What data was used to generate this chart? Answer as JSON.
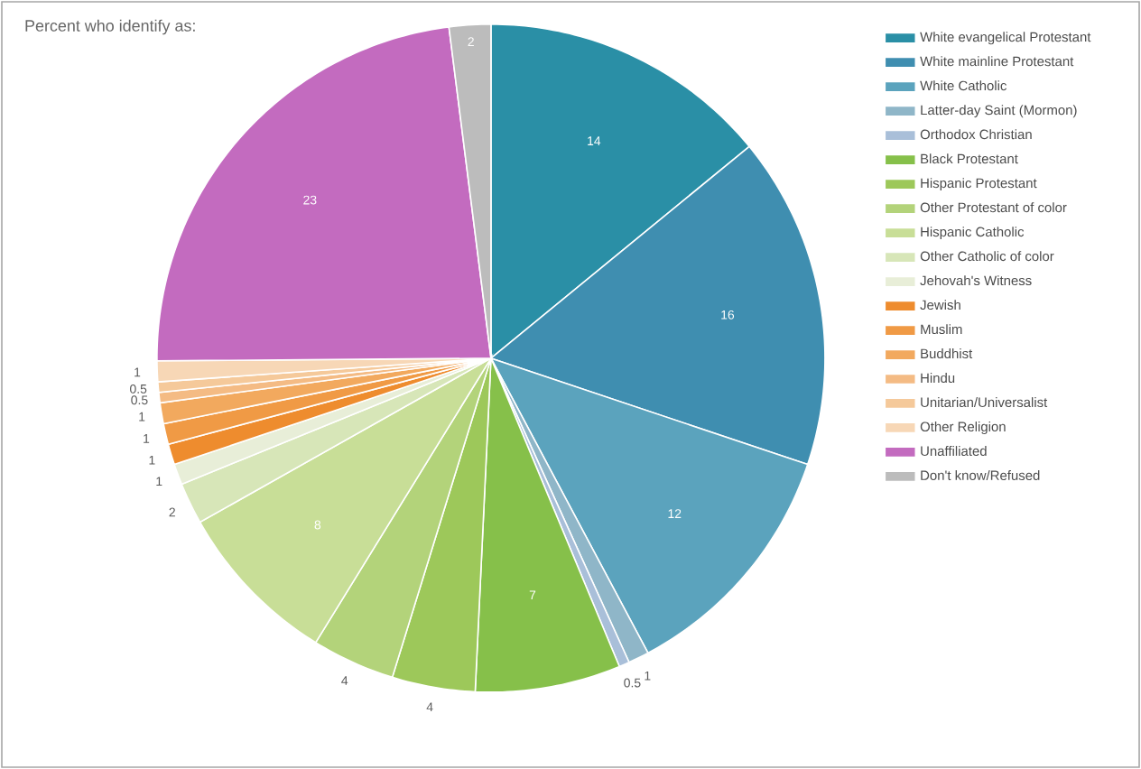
{
  "chart_data": {
    "type": "pie",
    "title": "Percent who identify as:",
    "categories": [
      "White evangelical Protestant",
      "White mainline Protestant",
      "White Catholic",
      "Latter-day Saint (Mormon)",
      "Orthodox Christian",
      "Black Protestant",
      "Hispanic Protestant",
      "Other Protestant of color",
      "Hispanic Catholic",
      "Other Catholic of color",
      "Jehovah's Witness",
      "Jewish",
      "Muslim",
      "Buddhist",
      "Hindu",
      "Unitarian/Universalist",
      "Other Religion",
      "Unaffiliated",
      "Don't know/Refused"
    ],
    "values": [
      14,
      16,
      12,
      1,
      0.5,
      7,
      4,
      4,
      8,
      2,
      1,
      1,
      1,
      1,
      0.5,
      0.5,
      1,
      23,
      2
    ],
    "colors": [
      "#2a8fa6",
      "#3f8eb0",
      "#5ba3bd",
      "#8fb6c8",
      "#a9bfd9",
      "#86c04a",
      "#9dc85a",
      "#b3d37a",
      "#c8de97",
      "#d7e6b8",
      "#e8eed8",
      "#ee8c2e",
      "#f09a45",
      "#f2a95e",
      "#f4bb84",
      "#f5c99a",
      "#f7d7b6",
      "#c36bbf",
      "#bcbcbc"
    ],
    "data_labels": true,
    "legend": "right"
  }
}
